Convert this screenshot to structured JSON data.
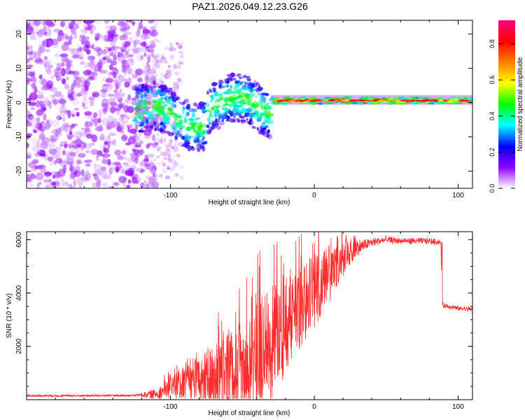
{
  "figure_title": "PAZ1.2026.049.12.23.G26",
  "chart_data": [
    {
      "type": "heatmap",
      "title": "PAZ1.2026.049.12.23.G26",
      "xlabel": "Height of straight line (km)",
      "ylabel": "Frequency (Hz)",
      "xlim": [
        -200,
        110
      ],
      "ylim": [
        -25,
        24
      ],
      "x_ticks": [
        -100,
        0,
        100
      ],
      "x_tick_labels": [
        "-100",
        "0",
        "100"
      ],
      "y_ticks": [
        -20,
        -10,
        0,
        10,
        20
      ],
      "y_tick_labels": [
        "-20",
        "-10",
        "0",
        "10",
        "20"
      ],
      "description_regions": [
        {
          "x_range": [
            -200,
            -110
          ],
          "y_range": [
            -25,
            24
          ],
          "amplitude": "low",
          "pattern": "scattered noise"
        },
        {
          "x_range": [
            -125,
            -30
          ],
          "y_range": [
            -12,
            8
          ],
          "amplitude": "medium",
          "pattern": "wavy signal band"
        },
        {
          "x_range": [
            -30,
            110
          ],
          "y_range": [
            -1,
            2
          ],
          "amplitude": "high",
          "pattern": "narrow band near 0.5 Hz"
        }
      ],
      "colorbar": {
        "label": "Normalized spectral amplitude",
        "range": [
          0,
          0.93
        ],
        "ticks": [
          0.0,
          0.2,
          0.4,
          0.6,
          0.8
        ],
        "tick_labels": [
          "0.0",
          "0.2",
          "0.4",
          "0.6",
          "0.8"
        ],
        "colormap": [
          "#ffffff",
          "#8f00ff",
          "#0000ff",
          "#00ffff",
          "#00ff00",
          "#ffff00",
          "#ff8000",
          "#ff0000",
          "#ff0080"
        ]
      }
    },
    {
      "type": "line",
      "title": "",
      "xlabel": "Height of straight line (km)",
      "ylabel": "SNR (10 * v/v)",
      "xlim": [
        -200,
        110
      ],
      "ylim": [
        0,
        6300
      ],
      "x_ticks": [
        -100,
        0,
        100
      ],
      "x_tick_labels": [
        "-100",
        "0",
        "100"
      ],
      "y_ticks": [
        2000,
        4000,
        6000
      ],
      "y_tick_labels": [
        "2000",
        "4000",
        "6000"
      ],
      "series": [
        {
          "name": "SNR",
          "color": "#ff2a2a",
          "x": [
            -200,
            -160,
            -125,
            -110,
            -100,
            -85,
            -70,
            -55,
            -40,
            -30,
            -20,
            -10,
            0,
            10,
            20,
            30,
            40,
            50,
            60,
            70,
            80,
            88,
            89,
            95,
            100,
            110
          ],
          "y": [
            150,
            150,
            160,
            220,
            450,
            650,
            800,
            1100,
            1600,
            2200,
            2800,
            3500,
            4100,
            4700,
            5300,
            5700,
            5900,
            6000,
            5950,
            5950,
            5950,
            5900,
            3550,
            3480,
            3420,
            3400
          ],
          "noise_envelope": [
            0,
            0,
            0,
            200,
            400,
            800,
            1200,
            1600,
            2000,
            2200,
            2000,
            1600,
            1400,
            1100,
            700,
            300,
            150,
            120,
            100,
            100,
            100,
            100,
            80,
            80,
            80,
            80
          ]
        }
      ]
    }
  ]
}
